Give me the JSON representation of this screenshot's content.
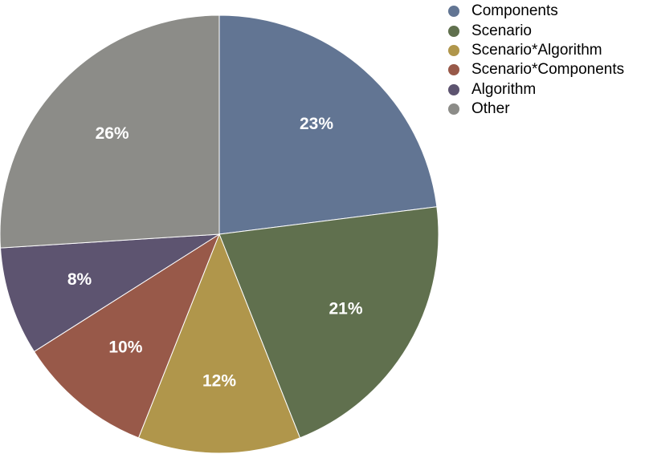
{
  "chart_data": {
    "type": "pie",
    "title": "",
    "slices": [
      {
        "label": "Components",
        "value": 23,
        "display": "23%",
        "color": "#627593"
      },
      {
        "label": "Scenario",
        "value": 21,
        "display": "21%",
        "color": "#60704e"
      },
      {
        "label": "Scenario*Algorithm",
        "value": 12,
        "display": "12%",
        "color": "#b0964b"
      },
      {
        "label": "Scenario*Components",
        "value": 10,
        "display": "10%",
        "color": "#985949"
      },
      {
        "label": "Algorithm",
        "value": 8,
        "display": "8%",
        "color": "#5d5470"
      },
      {
        "label": "Other",
        "value": 26,
        "display": "26%",
        "color": "#8c8c88"
      }
    ],
    "legend_position": "top-right",
    "start_angle": "12 o'clock, clockwise"
  }
}
